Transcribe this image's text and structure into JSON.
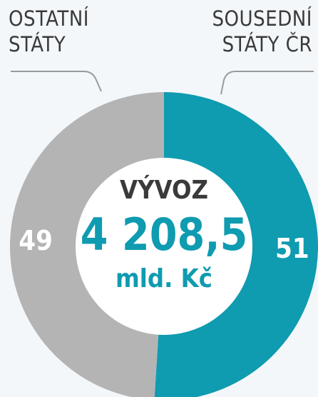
{
  "chart_data": {
    "type": "donut",
    "categories": [
      "SOUSEDNÍ STÁTY ČR",
      "OSTATNÍ STÁTY"
    ],
    "values": [
      51,
      49
    ],
    "colors": [
      "#0f9bb0",
      "#b4b4b4"
    ],
    "annotations": [
      "VÝVOZ",
      "4 208,5",
      "mld. Kč"
    ]
  }
}
